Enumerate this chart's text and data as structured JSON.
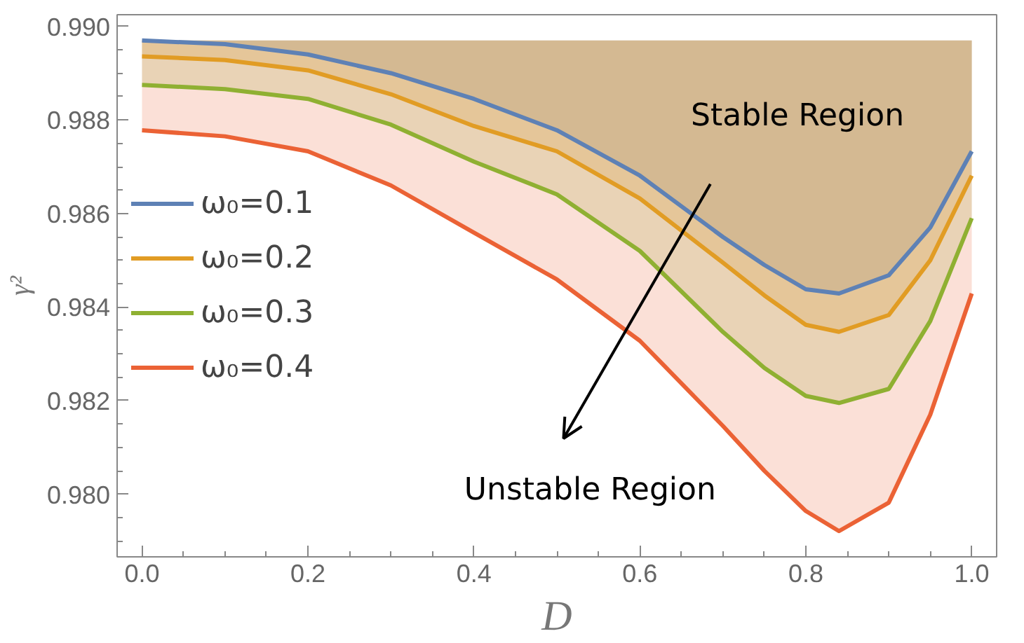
{
  "chart_data": {
    "type": "line",
    "xlabel": "D",
    "ylabel": "γ²",
    "x": [
      0,
      0.1,
      0.2,
      0.3,
      0.4,
      0.5,
      0.6,
      0.7,
      0.75,
      0.8,
      0.84,
      0.9,
      0.95,
      1.0
    ],
    "series": [
      {
        "name": "ω₀=0.1",
        "color": "#5e81b5",
        "values": [
          0.9897,
          0.98962,
          0.9894,
          0.989,
          0.98845,
          0.98778,
          0.98681,
          0.9855,
          0.9849,
          0.98438,
          0.98429,
          0.98468,
          0.9857,
          0.98733
        ],
        "lower": [
          0.9897,
          0.98962,
          0.9894,
          0.989,
          0.98845,
          0.98778,
          0.98681,
          0.9855,
          0.9849,
          0.98438,
          0.98429,
          0.98468,
          0.9857,
          0.98733
        ],
        "upper": [
          0.9897,
          0.9897,
          0.9897,
          0.9897,
          0.9897,
          0.9897,
          0.9897,
          0.9897,
          0.9897,
          0.9897,
          0.9897,
          0.9897,
          0.9897,
          0.9897
        ]
      },
      {
        "name": "ω₀=0.2",
        "color": "#e19c24",
        "values": [
          0.98936,
          0.98928,
          0.98906,
          0.98855,
          0.98787,
          0.98733,
          0.98632,
          0.98495,
          0.98425,
          0.98362,
          0.98347,
          0.98383,
          0.985,
          0.98681
        ],
        "lower": [
          0.98936,
          0.98928,
          0.98906,
          0.98855,
          0.98787,
          0.98733,
          0.98632,
          0.98495,
          0.98425,
          0.98362,
          0.98347,
          0.98383,
          0.985,
          0.98681
        ],
        "upper": [
          0.9897,
          0.9897,
          0.9897,
          0.9897,
          0.9897,
          0.9897,
          0.9897,
          0.9897,
          0.9897,
          0.9897,
          0.9897,
          0.9897,
          0.9897,
          0.9897
        ]
      },
      {
        "name": "ω₀=0.3",
        "color": "#8fb032",
        "values": [
          0.98875,
          0.98866,
          0.98845,
          0.9879,
          0.98711,
          0.98641,
          0.9852,
          0.98347,
          0.9827,
          0.9821,
          0.98195,
          0.98225,
          0.9837,
          0.9859
        ],
        "lower": [
          0.98875,
          0.98866,
          0.98845,
          0.9879,
          0.98711,
          0.98641,
          0.9852,
          0.98347,
          0.9827,
          0.9821,
          0.98195,
          0.98225,
          0.9837,
          0.9859
        ],
        "upper": [
          0.9897,
          0.9897,
          0.9897,
          0.9897,
          0.9897,
          0.9897,
          0.9897,
          0.9897,
          0.9897,
          0.9897,
          0.9897,
          0.9897,
          0.9897,
          0.9897
        ]
      },
      {
        "name": "ω₀=0.4",
        "color": "#eb6235",
        "values": [
          0.98778,
          0.98765,
          0.98733,
          0.9866,
          0.98559,
          0.98459,
          0.98328,
          0.98146,
          0.9805,
          0.97964,
          0.97921,
          0.97982,
          0.9817,
          0.98429
        ],
        "lower": [
          0.98778,
          0.98765,
          0.98733,
          0.9866,
          0.98559,
          0.98459,
          0.98328,
          0.98146,
          0.9805,
          0.97964,
          0.97921,
          0.97982,
          0.9817,
          0.98429
        ],
        "upper": [
          0.9897,
          0.9897,
          0.9897,
          0.9897,
          0.9897,
          0.9897,
          0.9897,
          0.9897,
          0.9897,
          0.9897,
          0.9897,
          0.9897,
          0.9897,
          0.9897
        ]
      }
    ],
    "xlim": [
      -0.03,
      1.03
    ],
    "ylim": [
      0.97866,
      0.99025
    ],
    "xticks": [
      {
        "value": 0,
        "label": "0.0"
      },
      0.2,
      0.4,
      0.6,
      0.8,
      {
        "value": 1,
        "label": "1.0"
      }
    ],
    "yticks": [
      {
        "value": 0.98,
        "label": "0.980"
      },
      0.982,
      0.984,
      0.986,
      0.988,
      {
        "value": 0.99,
        "label": "0.990"
      }
    ],
    "annotations": [
      "Stable Region",
      "Unstable Region"
    ],
    "legend": "left",
    "grid": false,
    "marker": "none",
    "line_style": "solid"
  }
}
